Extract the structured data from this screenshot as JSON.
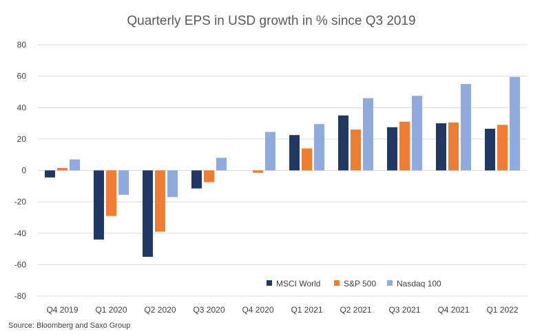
{
  "chart_data": {
    "type": "bar",
    "title": "Quarterly EPS in USD growth in % since Q3 2019",
    "xlabel": "",
    "ylabel": "",
    "categories": [
      "Q4 2019",
      "Q1 2020",
      "Q2 2020",
      "Q3 2020",
      "Q4 2020",
      "Q1 2021",
      "Q2 2021",
      "Q3 2021",
      "Q4 2021",
      "Q1 2022"
    ],
    "series": [
      {
        "name": "MSCI World",
        "color": "#203864",
        "values": [
          -4.5,
          -44,
          -55,
          -11.5,
          0,
          22.5,
          35,
          27.5,
          30,
          26.5
        ]
      },
      {
        "name": "S&P 500",
        "color": "#ED7D31",
        "values": [
          1.5,
          -29,
          -39,
          -7.5,
          -1.5,
          14,
          26,
          31,
          30.5,
          29
        ]
      },
      {
        "name": "Nasdaq 100",
        "color": "#8FAADC",
        "values": [
          7,
          -15.5,
          -17,
          8,
          24.5,
          29.5,
          46,
          47.5,
          55,
          59.5
        ]
      }
    ],
    "ylim": [
      -80,
      80
    ],
    "yticks": [
      80,
      60,
      40,
      20,
      0,
      -20,
      -40,
      -60,
      -80
    ],
    "grid": true,
    "legend_position": "bottom-right",
    "source": "Source: Bloomberg and Saxo Group"
  }
}
